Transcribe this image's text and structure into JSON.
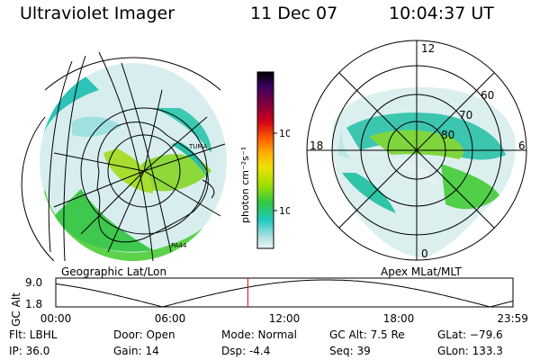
{
  "header": {
    "instrument": "Ultraviolet Imager",
    "date": "11 Dec 07",
    "time": "10:04:37 UT"
  },
  "left_panel": {
    "label": "Geographic Lat/Lon",
    "map_labels": [
      "TUMA",
      "PA44"
    ]
  },
  "right_panel": {
    "label": "Apex MLat/MLT",
    "mlt_labels": [
      "12",
      "18",
      "6",
      "0"
    ],
    "lat_labels": [
      "60",
      "70",
      "80"
    ]
  },
  "colorbar": {
    "unit_label": "photon cm⁻²s⁻¹",
    "tick_labels": [
      "100",
      "10"
    ],
    "colors": [
      "#000000",
      "#3a0060",
      "#800040",
      "#b00020",
      "#e00010",
      "#ff6000",
      "#ffb000",
      "#f0e000",
      "#b0e000",
      "#60d000",
      "#20c040",
      "#20c8c0",
      "#a0e0e0",
      "#e8f0f0"
    ]
  },
  "altitude_plot": {
    "ylabel": "GC Alt",
    "y_ticks": [
      "9.0",
      "1.8"
    ],
    "x_ticks": [
      "00:00",
      "06:00",
      "12:00",
      "18:00",
      "23:59"
    ],
    "current_time_hours": 10.08,
    "ylim": [
      1.8,
      9.0
    ]
  },
  "info": {
    "filter": "Flt: LBHL",
    "ip": "IP: 36.0",
    "door": "Door: Open",
    "gain": "Gain: 14",
    "mode": "Mode: Normal",
    "dsp": "Dsp:    -4.4",
    "gc_alt": "GC Alt: 7.5 Re",
    "seq": "Seq: 39",
    "glat": "GLat: −79.6",
    "glon": "GLon: 133.3"
  }
}
